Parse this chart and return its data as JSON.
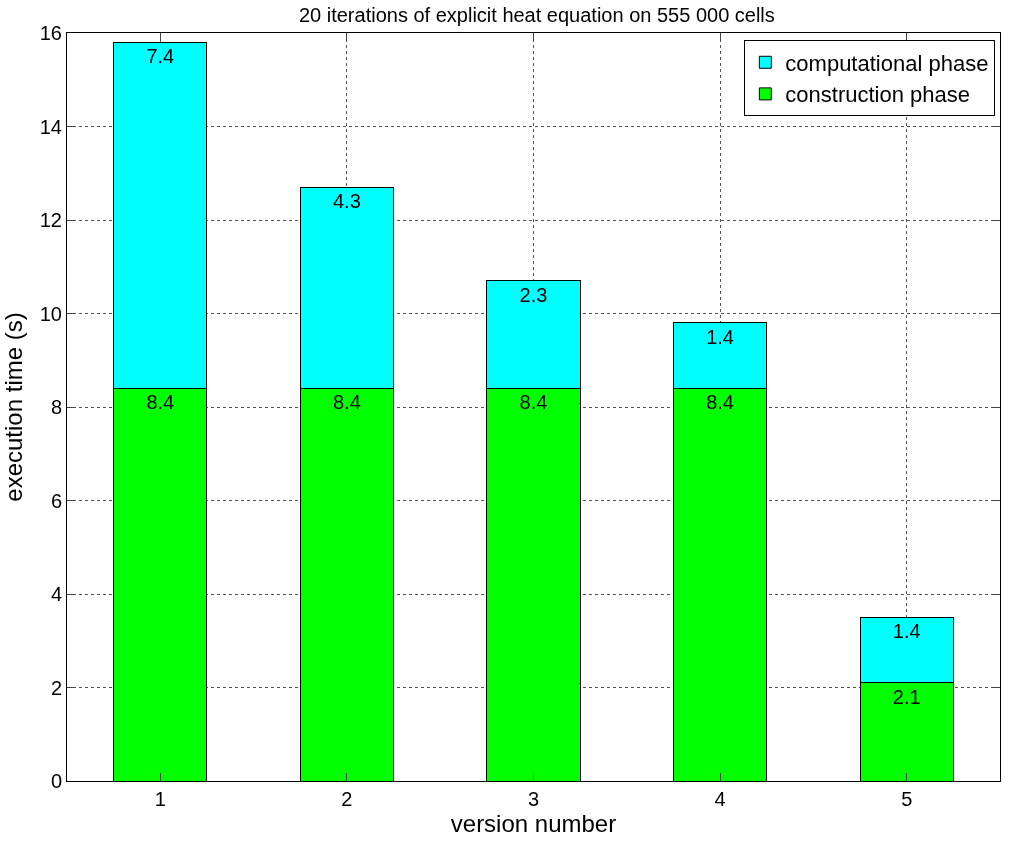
{
  "chart_data": {
    "type": "bar",
    "title": "20 iterations of explicit heat equation on 555 000 cells",
    "xlabel": "version number",
    "ylabel": "execution time (s)",
    "categories": [
      "1",
      "2",
      "3",
      "4",
      "5"
    ],
    "series": [
      {
        "name": "construction phase",
        "color": "#00ff00",
        "values": [
          8.4,
          8.4,
          8.4,
          8.4,
          2.1
        ]
      },
      {
        "name": "computational phase",
        "color": "#00ffff",
        "values": [
          7.4,
          4.3,
          2.3,
          1.4,
          1.4
        ]
      }
    ],
    "stacked": true,
    "data_labels": true,
    "ylim": [
      0,
      16
    ],
    "yticks": [
      0,
      2,
      4,
      6,
      8,
      10,
      12,
      14,
      16
    ],
    "grid": true,
    "legend": "top right"
  }
}
